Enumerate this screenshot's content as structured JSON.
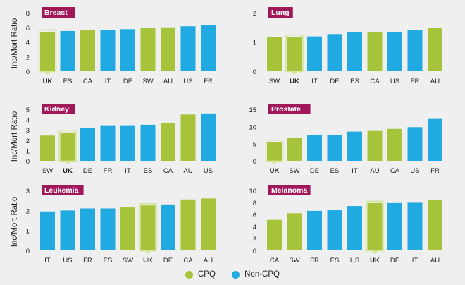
{
  "colors": {
    "cpq": "#a6c43a",
    "non_cpq": "#21a9e1",
    "tag_bg": "#a0175a",
    "highlight": "#a6c43a"
  },
  "ylabel": "Inc/Mort Ratio",
  "legend": [
    {
      "label": "CPQ",
      "color": "#a6c43a"
    },
    {
      "label": "Non-CPQ",
      "color": "#21a9e1"
    }
  ],
  "chart_data": [
    {
      "type": "bar",
      "title": "Breast",
      "ylim": [
        0,
        8
      ],
      "yticks": [
        0,
        2,
        4,
        6,
        8
      ],
      "categories": [
        "UK",
        "ES",
        "CA",
        "IT",
        "DE",
        "SW",
        "AU",
        "US",
        "FR"
      ],
      "values": [
        5.4,
        5.5,
        5.6,
        5.65,
        5.75,
        5.9,
        6.0,
        6.15,
        6.3
      ],
      "group": [
        "cpq",
        "non",
        "cpq",
        "non",
        "non",
        "cpq",
        "cpq",
        "non",
        "non"
      ],
      "highlight": "UK"
    },
    {
      "type": "bar",
      "title": "Lung",
      "ylim": [
        0,
        2
      ],
      "yticks": [
        0,
        1,
        2
      ],
      "categories": [
        "SW",
        "UK",
        "IT",
        "DE",
        "ES",
        "CA",
        "US",
        "FR",
        "AU"
      ],
      "values": [
        1.17,
        1.18,
        1.19,
        1.27,
        1.34,
        1.34,
        1.35,
        1.41,
        1.48
      ],
      "group": [
        "cpq",
        "cpq",
        "non",
        "non",
        "non",
        "cpq",
        "non",
        "non",
        "cpq"
      ],
      "highlight": "UK"
    },
    {
      "type": "bar",
      "title": "Kidney",
      "ylim": [
        0,
        5
      ],
      "yticks": [
        0,
        1,
        2,
        3,
        4,
        5
      ],
      "categories": [
        "SW",
        "UK",
        "DE",
        "FR",
        "IT",
        "ES",
        "CA",
        "AU",
        "US"
      ],
      "values": [
        2.45,
        2.75,
        3.2,
        3.45,
        3.45,
        3.5,
        3.7,
        4.5,
        4.6
      ],
      "group": [
        "cpq",
        "cpq",
        "non",
        "non",
        "non",
        "non",
        "cpq",
        "cpq",
        "non"
      ],
      "highlight": "UK"
    },
    {
      "type": "bar",
      "title": "Prostate",
      "ylim": [
        0,
        15
      ],
      "yticks": [
        0,
        5,
        10,
        15
      ],
      "categories": [
        "UK",
        "SW",
        "DE",
        "ES",
        "IT",
        "AU",
        "CA",
        "US",
        "FR"
      ],
      "values": [
        5.5,
        6.7,
        7.5,
        7.5,
        8.5,
        8.9,
        9.3,
        9.8,
        12.4
      ],
      "group": [
        "cpq",
        "cpq",
        "non",
        "non",
        "non",
        "cpq",
        "cpq",
        "non",
        "non"
      ],
      "highlight": "UK"
    },
    {
      "type": "bar",
      "title": "Leukemia",
      "ylim": [
        0,
        3
      ],
      "yticks": [
        0,
        1,
        2,
        3
      ],
      "categories": [
        "IT",
        "US",
        "FR",
        "ES",
        "SW",
        "UK",
        "DE",
        "CA",
        "AU"
      ],
      "values": [
        1.95,
        2.0,
        2.1,
        2.1,
        2.15,
        2.25,
        2.3,
        2.55,
        2.6
      ],
      "group": [
        "non",
        "non",
        "non",
        "non",
        "cpq",
        "cpq",
        "non",
        "cpq",
        "cpq"
      ],
      "highlight": "UK"
    },
    {
      "type": "bar",
      "title": "Melanoma",
      "ylim": [
        0,
        10
      ],
      "yticks": [
        0,
        2,
        4,
        6,
        8,
        10
      ],
      "categories": [
        "CA",
        "SW",
        "FR",
        "ES",
        "US",
        "UK",
        "DE",
        "IT",
        "AU"
      ],
      "values": [
        5.1,
        6.2,
        6.6,
        6.7,
        7.4,
        7.9,
        7.9,
        7.95,
        8.45
      ],
      "group": [
        "cpq",
        "cpq",
        "non",
        "non",
        "non",
        "cpq",
        "non",
        "non",
        "cpq"
      ],
      "highlight": "UK"
    }
  ]
}
